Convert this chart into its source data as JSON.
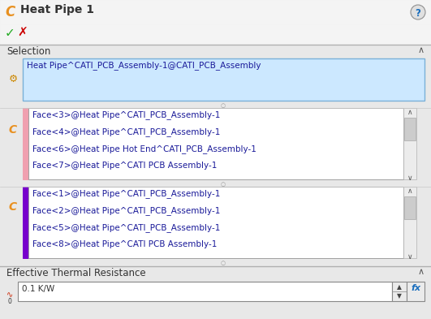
{
  "title": "Heat Pipe 1",
  "bg_color": "#e8e8e8",
  "selection_label": "Selection",
  "selection_box_text": "Heat Pipe^CATI_PCB_Assembly-1@CATI_PCB_Assembly",
  "selection_box_bg": "#cce8ff",
  "selection_box_border": "#7ab0d8",
  "pink_faces": [
    "Face<3>@Heat Pipe^CATI_PCB_Assembly-1",
    "Face<4>@Heat Pipe^CATI_PCB_Assembly-1",
    "Face<6>@Heat Pipe Hot End^CATI_PCB_Assembly-1",
    "Face<7>@Heat Pipe^CATI PCB Assembly-1"
  ],
  "purple_faces": [
    "Face<1>@Heat Pipe^CATI_PCB_Assembly-1",
    "Face<2>@Heat Pipe^CATI_PCB_Assembly-1",
    "Face<5>@Heat Pipe^CATI_PCB_Assembly-1",
    "Face<8>@Heat Pipe^CATI PCB Assembly-1"
  ],
  "thermal_label": "Effective Thermal Resistance",
  "thermal_value": "0.1 K/W",
  "pink_color": "#f0a0b0",
  "purple_color": "#7700cc",
  "text_color": "#1a1a99",
  "section_text_color": "#333333",
  "list_bg": "#ffffff",
  "list_border": "#a0a0a0",
  "font_size": 7.5,
  "title_font_size": 10,
  "section_font_size": 8.5
}
